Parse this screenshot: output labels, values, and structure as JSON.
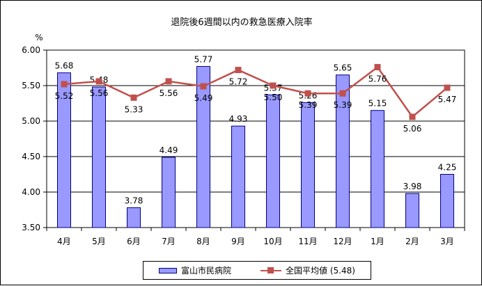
{
  "chart_data": {
    "type": "bar+line",
    "title": "退院後6週間以内の救急医療入院率",
    "ylabel": "%",
    "xlabel": "",
    "ylim": [
      3.5,
      6.0
    ],
    "yticks": [
      "3.50",
      "4.00",
      "4.50",
      "5.00",
      "5.50",
      "6.00"
    ],
    "categories": [
      "4月",
      "5月",
      "6月",
      "7月",
      "8月",
      "9月",
      "10月",
      "11月",
      "12月",
      "1月",
      "2月",
      "3月"
    ],
    "grid": "horizontal",
    "legend": "bottom",
    "series": [
      {
        "name": "富山市民病院",
        "type": "bar",
        "color": "#9999ff",
        "values": [
          5.68,
          5.48,
          3.78,
          4.49,
          5.77,
          4.93,
          5.37,
          5.26,
          5.65,
          5.15,
          3.98,
          4.25
        ],
        "labels": [
          "5.68",
          "5.48",
          "3.78",
          "4.49",
          "5.77",
          "4.93",
          "5.37",
          "5.26",
          "5.65",
          "5.15",
          "3.98",
          "4.25"
        ]
      },
      {
        "name": "全国平均値 (5.48)",
        "type": "line",
        "color": "#c0504d",
        "values": [
          5.52,
          5.56,
          5.33,
          5.56,
          5.49,
          5.72,
          5.5,
          5.39,
          5.39,
          5.76,
          5.06,
          5.47
        ],
        "labels": [
          "5.52",
          "5.56",
          "5.33",
          "5.56",
          "5.49",
          "5.72",
          "5.50",
          "5.39",
          "5.39",
          "5.76",
          "5.06",
          "5.47"
        ]
      }
    ]
  }
}
